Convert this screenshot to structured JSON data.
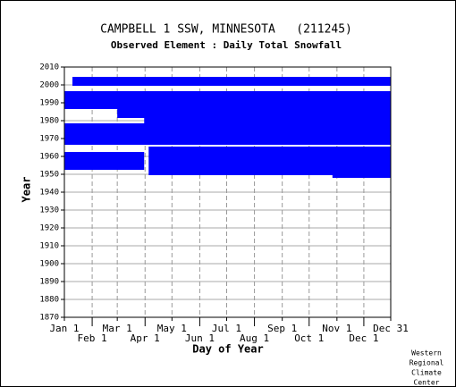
{
  "chart_data": {
    "type": "coverage",
    "title": "CAMPBELL 1 SSW, MINNESOTA   (211245)",
    "subtitle": "Observed Element : Daily Total Snowfall",
    "xlabel": "Day of Year",
    "ylabel": "Year",
    "credit": [
      "Western",
      "Regional",
      "Climate",
      "Center"
    ],
    "color": "#0000ff",
    "xlim": [
      1,
      365
    ],
    "ylim": [
      1870,
      2010
    ],
    "xticks": [
      {
        "value": 1,
        "label": "Jan 1"
      },
      {
        "value": 32,
        "label": "Feb 1"
      },
      {
        "value": 60,
        "label": "Mar 1"
      },
      {
        "value": 91,
        "label": "Apr 1"
      },
      {
        "value": 121,
        "label": "May 1"
      },
      {
        "value": 152,
        "label": "Jun 1"
      },
      {
        "value": 182,
        "label": "Jul 1"
      },
      {
        "value": 213,
        "label": "Aug 1"
      },
      {
        "value": 244,
        "label": "Sep 1"
      },
      {
        "value": 274,
        "label": "Oct 1"
      },
      {
        "value": 305,
        "label": "Nov 1"
      },
      {
        "value": 335,
        "label": "Dec 1"
      },
      {
        "value": 365,
        "label": "Dec 31"
      }
    ],
    "yticks": [
      1870,
      1880,
      1890,
      1900,
      1910,
      1920,
      1930,
      1940,
      1950,
      1960,
      1970,
      1980,
      1990,
      2000,
      2010
    ],
    "grid": true,
    "blocks": [
      {
        "years": [
          1999.5,
          2004.5
        ],
        "days": [
          10,
          365
        ]
      },
      {
        "years": [
          1986.5,
          1996.5
        ],
        "days": [
          1,
          365
        ]
      },
      {
        "years": [
          1981.5,
          1986.5
        ],
        "days": [
          60,
          365
        ]
      },
      {
        "years": [
          1978.5,
          1981.5
        ],
        "days": [
          90,
          365
        ]
      },
      {
        "years": [
          1966.5,
          1978.5
        ],
        "days": [
          1,
          365
        ]
      },
      {
        "years": [
          1949.5,
          1965.5
        ],
        "days": [
          95,
          365
        ]
      },
      {
        "years": [
          1952.5,
          1962.5
        ],
        "days": [
          1,
          90
        ]
      },
      {
        "years": [
          1948,
          1950
        ],
        "days": [
          300,
          365
        ]
      }
    ]
  }
}
